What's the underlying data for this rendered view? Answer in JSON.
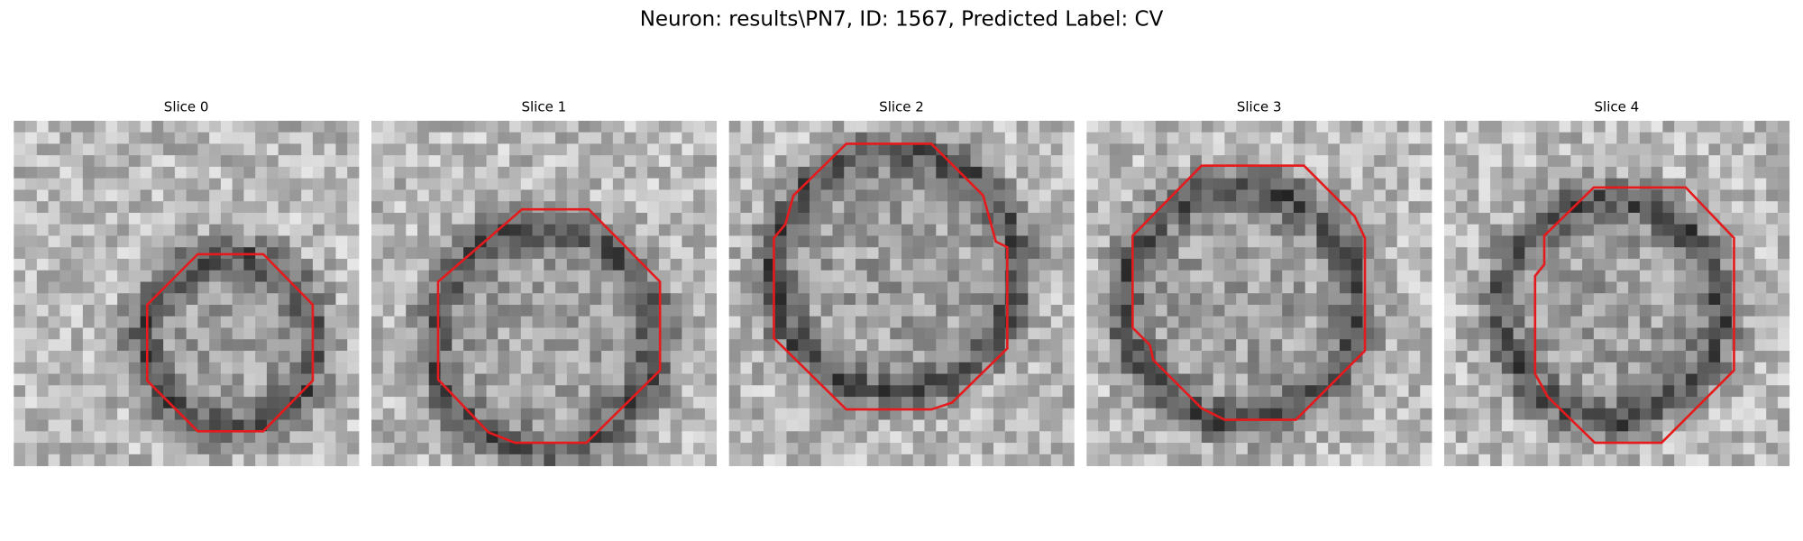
{
  "title": "Neuron: results\\PN7, ID: 1567, Predicted Label: CV",
  "panels": [
    {
      "title": "Slice 0"
    },
    {
      "title": "Slice 1"
    },
    {
      "title": "Slice 2"
    },
    {
      "title": "Slice 3"
    },
    {
      "title": "Slice 4"
    }
  ]
}
